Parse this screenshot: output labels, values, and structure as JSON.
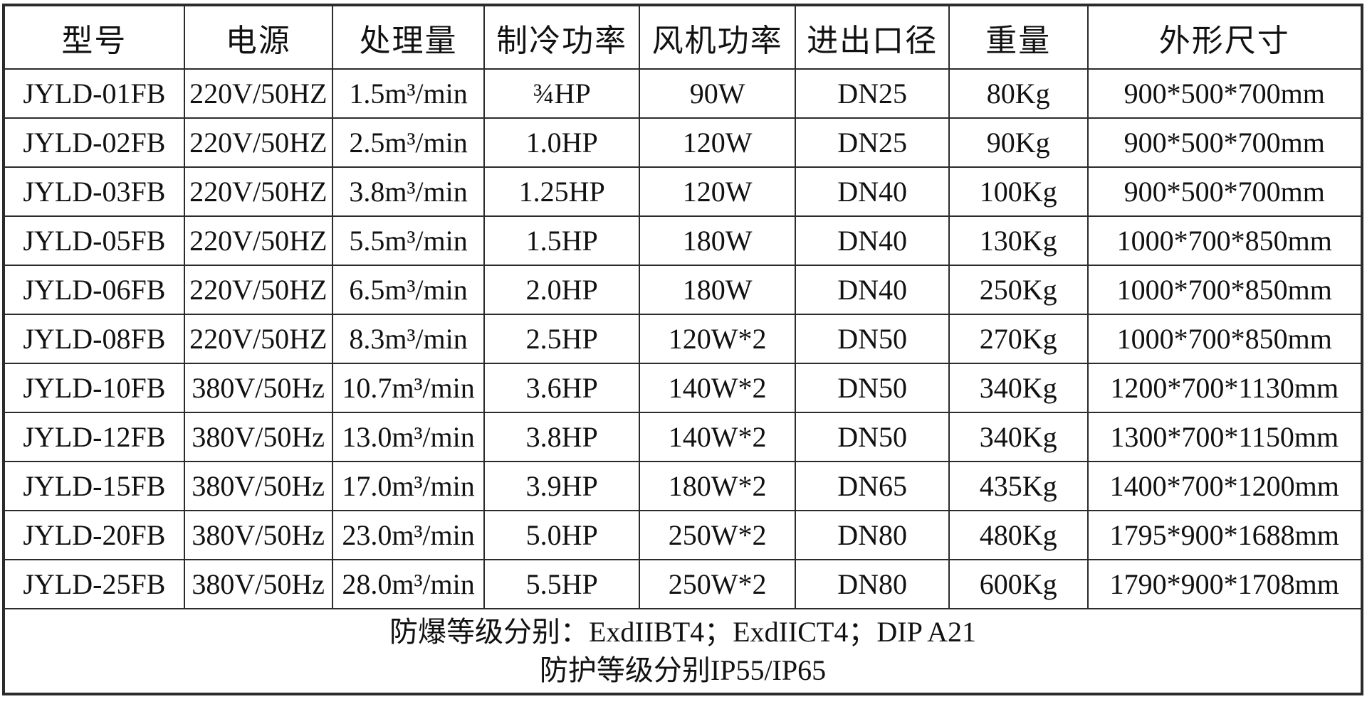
{
  "table": {
    "headers": [
      "型号",
      "电源",
      "处理量",
      "制冷功率",
      "风机功率",
      "进出口径",
      "重量",
      "外形尺寸"
    ],
    "column_keys": [
      "model",
      "power-supply",
      "processing-capacity",
      "cooling-power",
      "fan-power",
      "inlet-outlet-diameter",
      "weight",
      "dimensions"
    ],
    "rows": [
      [
        "JYLD-01FB",
        "220V/50HZ",
        "1.5m³/min",
        "¾HP",
        "90W",
        "DN25",
        "80Kg",
        "900*500*700mm"
      ],
      [
        "JYLD-02FB",
        "220V/50HZ",
        "2.5m³/min",
        "1.0HP",
        "120W",
        "DN25",
        "90Kg",
        "900*500*700mm"
      ],
      [
        "JYLD-03FB",
        "220V/50HZ",
        "3.8m³/min",
        "1.25HP",
        "120W",
        "DN40",
        "100Kg",
        "900*500*700mm"
      ],
      [
        "JYLD-05FB",
        "220V/50HZ",
        "5.5m³/min",
        "1.5HP",
        "180W",
        "DN40",
        "130Kg",
        "1000*700*850mm"
      ],
      [
        "JYLD-06FB",
        "220V/50HZ",
        "6.5m³/min",
        "2.0HP",
        "180W",
        "DN40",
        "250Kg",
        "1000*700*850mm"
      ],
      [
        "JYLD-08FB",
        "220V/50HZ",
        "8.3m³/min",
        "2.5HP",
        "120W*2",
        "DN50",
        "270Kg",
        "1000*700*850mm"
      ],
      [
        "JYLD-10FB",
        "380V/50Hz",
        "10.7m³/min",
        "3.6HP",
        "140W*2",
        "DN50",
        "340Kg",
        "1200*700*1130mm"
      ],
      [
        "JYLD-12FB",
        "380V/50Hz",
        "13.0m³/min",
        "3.8HP",
        "140W*2",
        "DN50",
        "340Kg",
        "1300*700*1150mm"
      ],
      [
        "JYLD-15FB",
        "380V/50Hz",
        "17.0m³/min",
        "3.9HP",
        "180W*2",
        "DN65",
        "435Kg",
        "1400*700*1200mm"
      ],
      [
        "JYLD-20FB",
        "380V/50Hz",
        "23.0m³/min",
        "5.0HP",
        "250W*2",
        "DN80",
        "480Kg",
        "1795*900*1688mm"
      ],
      [
        "JYLD-25FB",
        "380V/50Hz",
        "28.0m³/min",
        "5.5HP",
        "250W*2",
        "DN80",
        "600Kg",
        "1790*900*1708mm"
      ]
    ],
    "notes": [
      "防爆等级分别：ExdIIBT4；ExdIICT4；DIP A21",
      "防护等级分别IP55/IP65"
    ],
    "column_widths_percent": [
      13.3,
      10.9,
      11.2,
      11.4,
      11.5,
      11.3,
      10.2,
      20.2
    ]
  },
  "colors": {
    "border": "#2b2b2b",
    "text": "#111111",
    "background": "#ffffff"
  }
}
